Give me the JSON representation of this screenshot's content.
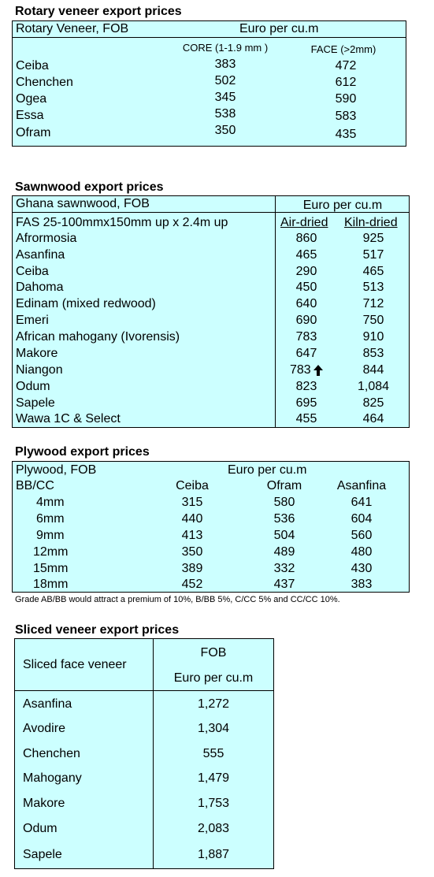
{
  "rotary": {
    "title": "Rotary veneer export prices",
    "header_left": "Rotary Veneer,  FOB",
    "header_right": "Euro  per cu.m",
    "col_core": "CORE (1-1.9 mm )",
    "col_face": "FACE (>2mm)",
    "rows": [
      {
        "name": "Ceiba",
        "core": "383",
        "face": "472"
      },
      {
        "name": "Chenchen",
        "core": "502",
        "face": "612"
      },
      {
        "name": "Ogea",
        "core": "345",
        "face": "590"
      },
      {
        "name": "Essa",
        "core": "538",
        "face": "583"
      },
      {
        "name": "Ofram",
        "core": "350",
        "face": "435"
      }
    ]
  },
  "sawnwood": {
    "title": "Sawnwood export prices",
    "header_left": "Ghana sawnwood, FOB",
    "header_right": "Euro per cu.m",
    "subheader_left": "FAS 25-100mmx150mm up x 2.4m up",
    "col_air": "Air-dried",
    "col_kiln": "Kiln-dried",
    "rows": [
      {
        "name": "Afrormosia",
        "air": "860",
        "kiln": "925"
      },
      {
        "name": "Asanfina",
        "air": "465",
        "kiln": "517"
      },
      {
        "name": "Ceiba",
        "air": "290",
        "kiln": "465"
      },
      {
        "name": "Dahoma",
        "air": "450",
        "kiln": "513"
      },
      {
        "name": "Edinam (mixed redwood)",
        "air": "640",
        "kiln": "712"
      },
      {
        "name": "Emeri",
        "air": "690",
        "kiln": "750"
      },
      {
        "name": "African mahogany (Ivorensis)",
        "air": "783",
        "kiln": "910"
      },
      {
        "name": "Makore",
        "air": "647",
        "kiln": "853"
      },
      {
        "name": "Niangon",
        "air": "783",
        "kiln": "844"
      },
      {
        "name": "Odum",
        "air": "823",
        "kiln": "1,084"
      },
      {
        "name": "Sapele",
        "air": "695",
        "kiln": "825"
      },
      {
        "name": "Wawa 1C & Select",
        "air": "455",
        "kiln": "464"
      }
    ],
    "up_arrow_icon": "up-arrow-icon"
  },
  "plywood": {
    "title": "Plywood export prices",
    "header_left": "Plywood, FOB",
    "header_right": "Euro per cu.m",
    "grade": "BB/CC",
    "cols": [
      "Ceiba",
      "Ofram",
      "Asanfina"
    ],
    "rows": [
      {
        "size": "4mm",
        "v": [
          "315",
          "580",
          "641"
        ]
      },
      {
        "size": "6mm",
        "v": [
          "440",
          "536",
          "604"
        ]
      },
      {
        "size": "9mm",
        "v": [
          "413",
          "504",
          "560"
        ]
      },
      {
        "size": "12mm",
        "v": [
          "350",
          "489",
          "480"
        ]
      },
      {
        "size": "15mm",
        "v": [
          "389",
          "332",
          "430"
        ]
      },
      {
        "size": "18mm",
        "v": [
          "452",
          "437",
          "383"
        ]
      }
    ],
    "note": "Grade AB/BB would attract a premium of 10%, B/BB 5%, C/CC 5% and CC/CC 10%."
  },
  "sliced": {
    "title": "Sliced veneer export prices",
    "header_left": "Sliced face veneer",
    "header_fob": "FOB",
    "header_unit": "Euro per cu.m",
    "rows": [
      {
        "name": "Asanfina",
        "price": "1,272"
      },
      {
        "name": "Avodire",
        "price": "1,304"
      },
      {
        "name": "Chenchen",
        "price": "555"
      },
      {
        "name": "Mahogany",
        "price": "1,479"
      },
      {
        "name": "Makore",
        "price": "1,753"
      },
      {
        "name": "Odum",
        "price": "2,083"
      },
      {
        "name": "Sapele",
        "price": "1,887"
      }
    ]
  }
}
